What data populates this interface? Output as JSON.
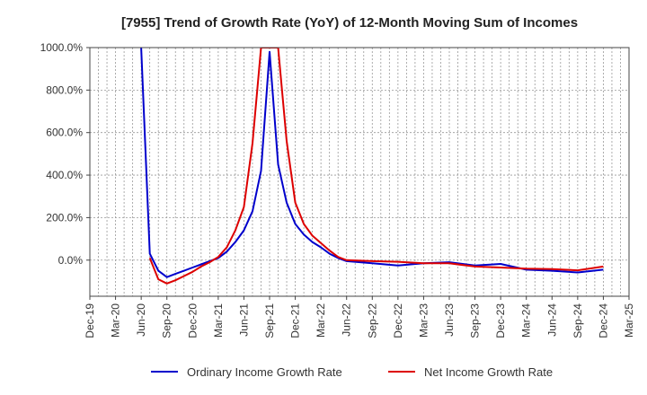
{
  "chart_data": {
    "type": "line",
    "title": "[7955]  Trend of Growth Rate (YoY) of 12-Month Moving Sum of Incomes",
    "xlabel": "",
    "ylabel": "",
    "ylim": [
      -170,
      1000
    ],
    "y_ticks": [
      0,
      200,
      400,
      600,
      800,
      1000
    ],
    "y_tick_labels": [
      "0.0%",
      "200.0%",
      "400.0%",
      "600.0%",
      "800.0%",
      "1000.0%"
    ],
    "x_tick_labels": [
      "Dec-19",
      "Mar-20",
      "Jun-20",
      "Sep-20",
      "Dec-20",
      "Mar-21",
      "Jun-21",
      "Sep-21",
      "Dec-21",
      "Mar-22",
      "Jun-22",
      "Sep-22",
      "Dec-22",
      "Mar-23",
      "Jun-23",
      "Sep-23",
      "Dec-23",
      "Mar-24",
      "Jun-24",
      "Sep-24",
      "Dec-24",
      "Mar-25"
    ],
    "grid": true,
    "legend_position": "bottom",
    "colors": {
      "ordinary": "#0000cc",
      "net": "#dd0000",
      "grid": "#999999",
      "axis": "#444444"
    },
    "series": [
      {
        "name": "Ordinary Income Growth Rate",
        "color": "#0000cc",
        "points": [
          [
            "2020-06",
            1000
          ],
          [
            "2020-07",
            30
          ],
          [
            "2020-08",
            -50
          ],
          [
            "2020-09",
            -80
          ],
          [
            "2020-10",
            -65
          ],
          [
            "2020-11",
            -50
          ],
          [
            "2020-12",
            -35
          ],
          [
            "2021-01",
            -20
          ],
          [
            "2021-02",
            -5
          ],
          [
            "2021-03",
            10
          ],
          [
            "2021-04",
            40
          ],
          [
            "2021-05",
            85
          ],
          [
            "2021-06",
            140
          ],
          [
            "2021-07",
            230
          ],
          [
            "2021-08",
            420
          ],
          [
            "2021-09",
            980
          ],
          [
            "2021-10",
            450
          ],
          [
            "2021-11",
            270
          ],
          [
            "2021-12",
            170
          ],
          [
            "2022-01",
            120
          ],
          [
            "2022-02",
            85
          ],
          [
            "2022-03",
            60
          ],
          [
            "2022-04",
            30
          ],
          [
            "2022-05",
            10
          ],
          [
            "2022-06",
            -5
          ],
          [
            "2022-09",
            -15
          ],
          [
            "2022-12",
            -25
          ],
          [
            "2023-03",
            -15
          ],
          [
            "2023-06",
            -10
          ],
          [
            "2023-09",
            -25
          ],
          [
            "2023-12",
            -18
          ],
          [
            "2024-03",
            -45
          ],
          [
            "2024-06",
            -50
          ],
          [
            "2024-09",
            -58
          ],
          [
            "2024-12",
            -45
          ]
        ]
      },
      {
        "name": "Net Income Growth Rate",
        "color": "#dd0000",
        "points": [
          [
            "2020-07",
            10
          ],
          [
            "2020-08",
            -90
          ],
          [
            "2020-09",
            -110
          ],
          [
            "2020-10",
            -95
          ],
          [
            "2020-11",
            -75
          ],
          [
            "2020-12",
            -55
          ],
          [
            "2021-01",
            -30
          ],
          [
            "2021-02",
            -10
          ],
          [
            "2021-03",
            15
          ],
          [
            "2021-04",
            60
          ],
          [
            "2021-05",
            140
          ],
          [
            "2021-06",
            250
          ],
          [
            "2021-07",
            550
          ],
          [
            "2021-08",
            1000
          ],
          [
            "2021-09",
            1000
          ],
          [
            "2021-10",
            1000
          ],
          [
            "2021-11",
            560
          ],
          [
            "2021-12",
            270
          ],
          [
            "2022-01",
            170
          ],
          [
            "2022-02",
            115
          ],
          [
            "2022-03",
            80
          ],
          [
            "2022-04",
            45
          ],
          [
            "2022-05",
            15
          ],
          [
            "2022-06",
            0
          ],
          [
            "2022-09",
            -5
          ],
          [
            "2022-12",
            -8
          ],
          [
            "2023-03",
            -15
          ],
          [
            "2023-06",
            -15
          ],
          [
            "2023-09",
            -30
          ],
          [
            "2023-12",
            -35
          ],
          [
            "2024-03",
            -40
          ],
          [
            "2024-06",
            -42
          ],
          [
            "2024-09",
            -48
          ],
          [
            "2024-12",
            -30
          ]
        ]
      }
    ]
  }
}
